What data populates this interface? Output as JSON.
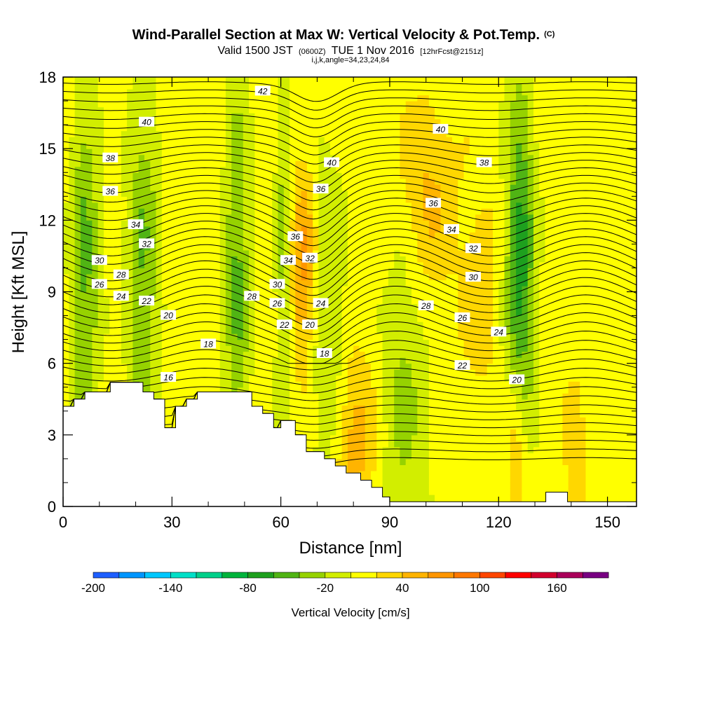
{
  "chart_data": {
    "type": "heatmap",
    "title": "Wind-Parallel Section at Max W: Vertical Velocity & Pot.Temp.",
    "title_mark": "(C)",
    "subtitle_prefix": "Valid 1500 JST",
    "subtitle_utc": "(0600Z)",
    "subtitle_date": "TUE 1 Nov 2016",
    "subtitle_fcst": "[12hrFcst@2151z]",
    "subtitle_indices": "i,j,k,angle=34,23,24,84",
    "xlabel": "Distance [nm]",
    "ylabel": "Height [Kft MSL]",
    "xlim": [
      0,
      158
    ],
    "ylim": [
      0,
      18
    ],
    "x_ticks": [
      "0",
      "30",
      "60",
      "90",
      "120",
      "150"
    ],
    "y_ticks": [
      "0",
      "3",
      "6",
      "9",
      "12",
      "15",
      "18"
    ],
    "colorbar": {
      "title": "Vertical Velocity [cm/s]",
      "min": -200,
      "max": 200,
      "step": 20,
      "tick_labels": [
        "-200",
        "-140",
        "-80",
        "-20",
        "40",
        "100",
        "160"
      ],
      "colors": [
        "#0000ff",
        "#1e5fff",
        "#0096ff",
        "#00c8ff",
        "#00e0c8",
        "#00d08a",
        "#00b43c",
        "#1ea01e",
        "#50b414",
        "#96d200",
        "#d2ee00",
        "#ffff00",
        "#ffd700",
        "#ffb400",
        "#ff9600",
        "#ff7800",
        "#ff4600",
        "#ff0000",
        "#d2002d",
        "#aa005a",
        "#780082",
        "#5a0096"
      ]
    },
    "contour_labels": [
      {
        "text": "42",
        "x": 55,
        "y": 17.4
      },
      {
        "text": "40",
        "x": 23,
        "y": 16.1
      },
      {
        "text": "40",
        "x": 104,
        "y": 15.8
      },
      {
        "text": "40",
        "x": 74,
        "y": 14.4
      },
      {
        "text": "38",
        "x": 13,
        "y": 14.6
      },
      {
        "text": "38",
        "x": 116,
        "y": 14.4
      },
      {
        "text": "36",
        "x": 71,
        "y": 13.3
      },
      {
        "text": "36",
        "x": 13,
        "y": 13.2
      },
      {
        "text": "36",
        "x": 102,
        "y": 12.7
      },
      {
        "text": "34",
        "x": 20,
        "y": 11.8
      },
      {
        "text": "34",
        "x": 107,
        "y": 11.6
      },
      {
        "text": "36",
        "x": 64,
        "y": 11.3
      },
      {
        "text": "32",
        "x": 23,
        "y": 11.0
      },
      {
        "text": "32",
        "x": 113,
        "y": 10.8
      },
      {
        "text": "34",
        "x": 62,
        "y": 10.3
      },
      {
        "text": "32",
        "x": 68,
        "y": 10.4
      },
      {
        "text": "30",
        "x": 10,
        "y": 10.3
      },
      {
        "text": "28",
        "x": 16,
        "y": 9.7
      },
      {
        "text": "30",
        "x": 113,
        "y": 9.6
      },
      {
        "text": "26",
        "x": 10,
        "y": 9.3
      },
      {
        "text": "30",
        "x": 59,
        "y": 9.3
      },
      {
        "text": "28",
        "x": 52,
        "y": 8.8
      },
      {
        "text": "24",
        "x": 16,
        "y": 8.8
      },
      {
        "text": "22",
        "x": 23,
        "y": 8.6
      },
      {
        "text": "26",
        "x": 59,
        "y": 8.5
      },
      {
        "text": "24",
        "x": 71,
        "y": 8.5
      },
      {
        "text": "28",
        "x": 100,
        "y": 8.4
      },
      {
        "text": "20",
        "x": 29,
        "y": 8.0
      },
      {
        "text": "26",
        "x": 110,
        "y": 7.9
      },
      {
        "text": "22",
        "x": 61,
        "y": 7.6
      },
      {
        "text": "20",
        "x": 68,
        "y": 7.6
      },
      {
        "text": "24",
        "x": 120,
        "y": 7.3
      },
      {
        "text": "18",
        "x": 40,
        "y": 6.8
      },
      {
        "text": "18",
        "x": 72,
        "y": 6.4
      },
      {
        "text": "22",
        "x": 110,
        "y": 5.9
      },
      {
        "text": "20",
        "x": 125,
        "y": 5.3
      },
      {
        "text": "16",
        "x": 29,
        "y": 5.4
      }
    ]
  }
}
